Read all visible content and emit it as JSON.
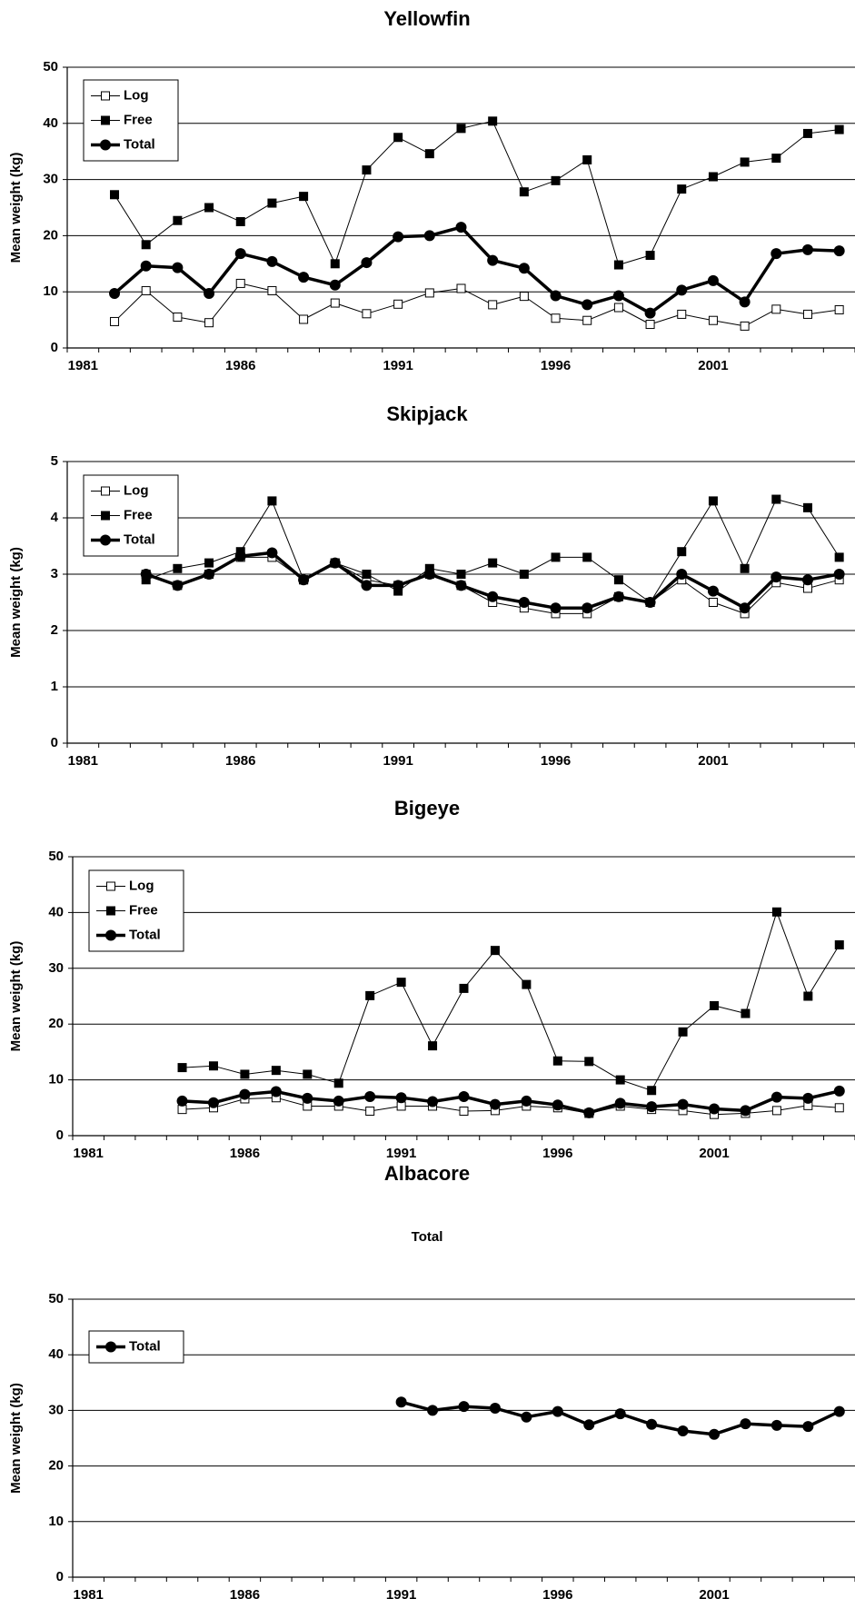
{
  "chart_data": [
    {
      "type": "line",
      "title": "Yellowfin",
      "ylabel": "Mean weight (kg)",
      "categories": [
        "1981",
        null,
        null,
        null,
        null,
        "1986",
        null,
        null,
        null,
        null,
        "1991",
        null,
        null,
        null,
        null,
        "1996",
        null,
        null,
        null,
        null,
        "2001",
        null,
        null,
        null,
        null
      ],
      "ylim": [
        0,
        50
      ],
      "yticks": [
        0,
        10,
        20,
        30,
        40,
        50
      ],
      "grid": true,
      "series": [
        {
          "name": "Log",
          "color": "#000000",
          "marker": "square-open",
          "line_width": 1,
          "values": [
            null,
            4.7,
            10.2,
            5.5,
            4.5,
            11.5,
            10.2,
            5.1,
            8.0,
            6.1,
            7.8,
            9.8,
            10.6,
            7.7,
            9.2,
            5.3,
            4.9,
            7.2,
            4.2,
            6.0,
            4.9,
            3.9,
            6.9,
            6.0,
            6.8
          ]
        },
        {
          "name": "Free",
          "color": "#000000",
          "marker": "square",
          "line_width": 1,
          "values": [
            null,
            27.3,
            18.4,
            22.7,
            25.0,
            22.5,
            25.8,
            27.0,
            15.0,
            31.7,
            37.5,
            34.6,
            39.1,
            40.4,
            27.8,
            29.8,
            33.5,
            14.8,
            16.5,
            28.3,
            30.5,
            33.1,
            33.8,
            38.2,
            38.9
          ]
        },
        {
          "name": "Total",
          "color": "#000000",
          "marker": "circle",
          "line_width": 3.5,
          "values": [
            null,
            9.7,
            14.6,
            14.3,
            9.7,
            16.8,
            15.4,
            12.6,
            11.2,
            15.2,
            19.8,
            20.0,
            21.5,
            15.6,
            14.2,
            9.3,
            7.7,
            9.3,
            6.2,
            10.3,
            12.0,
            8.2,
            16.8,
            17.5,
            17.3
          ]
        }
      ]
    },
    {
      "type": "line",
      "title": "Skipjack",
      "ylabel": "Mean weight (kg)",
      "categories": [
        "1981",
        null,
        null,
        null,
        null,
        "1986",
        null,
        null,
        null,
        null,
        "1991",
        null,
        null,
        null,
        null,
        "1996",
        null,
        null,
        null,
        null,
        "2001",
        null,
        null,
        null,
        null
      ],
      "ylim": [
        0,
        5
      ],
      "yticks": [
        0,
        1,
        2,
        3,
        4,
        5
      ],
      "grid": true,
      "series": [
        {
          "name": "Log",
          "color": "#000000",
          "marker": "square-open",
          "line_width": 1,
          "values": [
            null,
            null,
            3.0,
            2.8,
            3.0,
            3.3,
            3.3,
            2.9,
            3.2,
            2.9,
            2.8,
            3.0,
            2.8,
            2.5,
            2.4,
            2.3,
            2.3,
            2.6,
            2.5,
            2.9,
            2.5,
            2.3,
            2.85,
            2.75,
            2.9
          ]
        },
        {
          "name": "Free",
          "color": "#000000",
          "marker": "square",
          "line_width": 1,
          "values": [
            null,
            null,
            2.9,
            3.1,
            3.2,
            3.4,
            4.3,
            2.9,
            3.2,
            3.0,
            2.7,
            3.1,
            3.0,
            3.2,
            3.0,
            3.3,
            3.3,
            2.9,
            2.5,
            3.4,
            4.3,
            3.1,
            4.33,
            4.18,
            3.3
          ]
        },
        {
          "name": "Total",
          "color": "#000000",
          "marker": "circle",
          "line_width": 3.5,
          "values": [
            null,
            null,
            3.0,
            2.8,
            3.0,
            3.32,
            3.38,
            2.9,
            3.2,
            2.8,
            2.8,
            3.0,
            2.8,
            2.6,
            2.5,
            2.4,
            2.4,
            2.6,
            2.5,
            3.0,
            2.7,
            2.4,
            2.95,
            2.9,
            3.0
          ]
        }
      ]
    },
    {
      "type": "line",
      "title": "Bigeye",
      "ylabel": "Mean weight (kg)",
      "categories": [
        "1981",
        null,
        null,
        null,
        null,
        "1986",
        null,
        null,
        null,
        null,
        "1991",
        null,
        null,
        null,
        null,
        "1996",
        null,
        null,
        null,
        null,
        "2001",
        null,
        null,
        null,
        null
      ],
      "ylim": [
        0,
        50
      ],
      "yticks": [
        0,
        10,
        20,
        30,
        40,
        50
      ],
      "grid": true,
      "series": [
        {
          "name": "Log",
          "color": "#000000",
          "marker": "square-open",
          "line_width": 1,
          "values": [
            null,
            null,
            null,
            4.7,
            5.0,
            6.6,
            6.8,
            5.3,
            5.3,
            4.4,
            5.3,
            5.3,
            4.4,
            4.5,
            5.3,
            5.0,
            4.0,
            5.3,
            4.7,
            4.5,
            3.8,
            4.0,
            4.5,
            5.4,
            5.0
          ]
        },
        {
          "name": "Free",
          "color": "#000000",
          "marker": "square",
          "line_width": 1,
          "values": [
            null,
            null,
            null,
            12.2,
            12.5,
            11.0,
            11.7,
            11.0,
            9.4,
            25.1,
            27.5,
            16.1,
            26.4,
            33.2,
            27.1,
            13.4,
            13.3,
            10.0,
            8.1,
            18.6,
            23.3,
            21.9,
            40.1,
            25.0,
            34.2
          ]
        },
        {
          "name": "Total",
          "color": "#000000",
          "marker": "circle",
          "line_width": 3.5,
          "values": [
            null,
            null,
            null,
            6.2,
            5.9,
            7.4,
            7.9,
            6.7,
            6.2,
            7.0,
            6.8,
            6.1,
            7.0,
            5.6,
            6.2,
            5.5,
            4.1,
            5.8,
            5.2,
            5.6,
            4.8,
            4.5,
            6.9,
            6.7,
            8.0
          ]
        }
      ]
    },
    {
      "type": "line",
      "title": "Albacore",
      "subtitle": "Total",
      "ylabel": "Mean weight (kg)",
      "categories": [
        "1981",
        null,
        null,
        null,
        null,
        "1986",
        null,
        null,
        null,
        null,
        "1991",
        null,
        null,
        null,
        null,
        "1996",
        null,
        null,
        null,
        null,
        "2001",
        null,
        null,
        null,
        null
      ],
      "ylim": [
        0,
        50
      ],
      "yticks": [
        0,
        10,
        20,
        30,
        40,
        50
      ],
      "grid": true,
      "series": [
        {
          "name": "Total",
          "color": "#000000",
          "marker": "circle",
          "line_width": 3.5,
          "values": [
            null,
            null,
            null,
            null,
            null,
            null,
            null,
            null,
            null,
            null,
            31.5,
            30.0,
            30.7,
            30.4,
            28.8,
            29.8,
            27.4,
            29.4,
            27.5,
            26.3,
            25.7,
            27.6,
            27.3,
            27.1,
            29.8
          ]
        }
      ]
    }
  ]
}
